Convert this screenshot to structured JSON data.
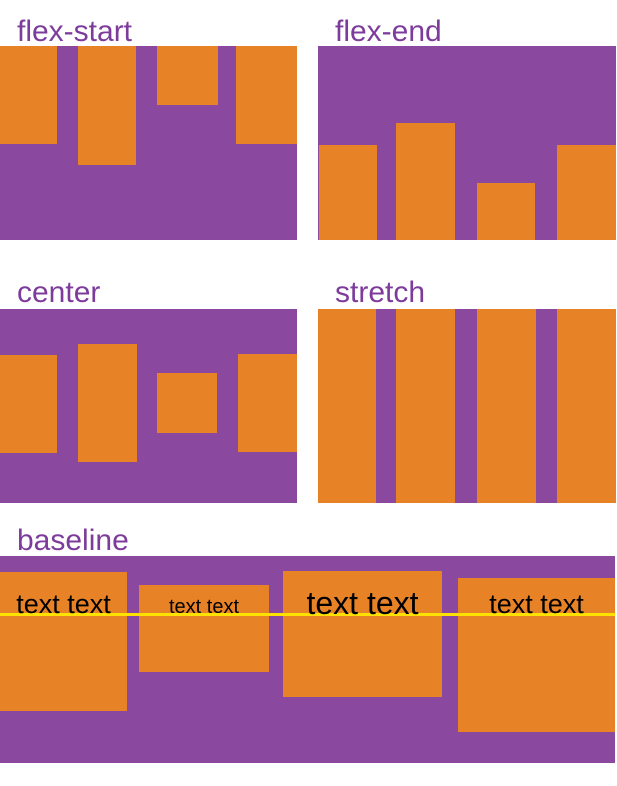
{
  "figure": {
    "panels": [
      {
        "label": "flex-start"
      },
      {
        "label": "flex-end"
      },
      {
        "label": "center"
      },
      {
        "label": "stretch"
      },
      {
        "label": "baseline",
        "items": [
          {
            "text": "text text"
          },
          {
            "text": "text text"
          },
          {
            "text": "text text"
          },
          {
            "text": "text text"
          }
        ]
      }
    ],
    "colors": {
      "background": "#ffffff",
      "container_purple": "#8a489e",
      "item_orange": "#e78326",
      "label_purple": "#7d3c9b",
      "baseline_line_yellow": "#ffe100",
      "item_text_black": "#000000"
    }
  }
}
